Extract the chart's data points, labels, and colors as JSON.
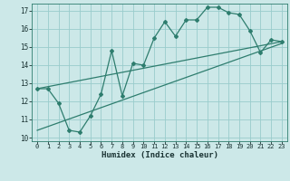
{
  "xlabel": "Humidex (Indice chaleur)",
  "xlim": [
    -0.5,
    23.5
  ],
  "ylim": [
    9.8,
    17.4
  ],
  "yticks": [
    10,
    11,
    12,
    13,
    14,
    15,
    16,
    17
  ],
  "xticks": [
    0,
    1,
    2,
    3,
    4,
    5,
    6,
    7,
    8,
    9,
    10,
    11,
    12,
    13,
    14,
    15,
    16,
    17,
    18,
    19,
    20,
    21,
    22,
    23
  ],
  "bg_color": "#cce8e8",
  "grid_color": "#99cccc",
  "line_color": "#2e7d6e",
  "line1_x": [
    0,
    1,
    2,
    3,
    4,
    5,
    6,
    7,
    8,
    9,
    10,
    11,
    12,
    13,
    14,
    15,
    16,
    17,
    18,
    19,
    20,
    21,
    22,
    23
  ],
  "line1_y": [
    12.7,
    12.7,
    11.9,
    10.4,
    10.3,
    11.2,
    12.4,
    14.8,
    12.3,
    14.1,
    14.0,
    15.5,
    16.4,
    15.6,
    16.5,
    16.5,
    17.2,
    17.2,
    16.9,
    16.8,
    15.9,
    14.7,
    15.4,
    15.3
  ],
  "line2_x": [
    0,
    23
  ],
  "line2_y": [
    12.7,
    15.3
  ],
  "line3_x": [
    0,
    23
  ],
  "line3_y": [
    10.4,
    15.2
  ]
}
